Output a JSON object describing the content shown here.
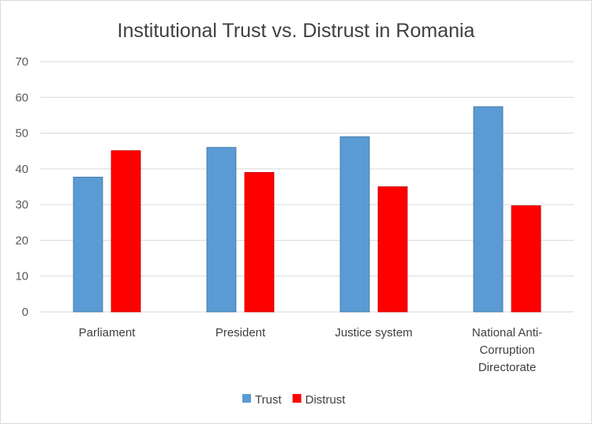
{
  "chart_data": {
    "type": "bar",
    "title": "Institutional Trust vs. Distrust in Romania",
    "xlabel": "",
    "ylabel": "",
    "categories": [
      [
        "Parliament"
      ],
      [
        "President"
      ],
      [
        "Justice system"
      ],
      [
        "National Anti-",
        "Corruption",
        "Directorate"
      ]
    ],
    "series": [
      {
        "name": "Trust",
        "color": "#5b9bd5",
        "values": [
          37.7,
          46,
          49,
          57.4
        ]
      },
      {
        "name": "Distrust",
        "color": "#ff0000",
        "values": [
          45.1,
          39,
          35,
          29.7
        ]
      }
    ],
    "ylim": [
      0,
      70
    ],
    "yticks": [
      0,
      10,
      20,
      30,
      40,
      50,
      60,
      70
    ],
    "grid": true,
    "legend_position": "bottom"
  }
}
